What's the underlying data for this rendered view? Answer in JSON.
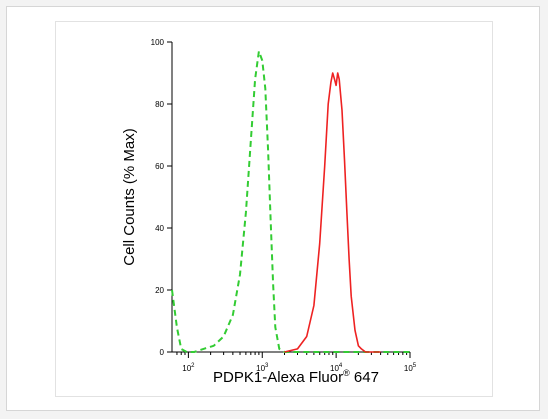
{
  "chart_data": {
    "type": "line",
    "title": "",
    "xlabel": "PDPK1-Alexa Fluor",
    "xlabel_sup": "®",
    "xlabel_tail": " 647",
    "ylabel": "Cell Counts (% Max)",
    "xscale": "log",
    "xlim": [
      60,
      100000
    ],
    "ylim": [
      0,
      100
    ],
    "x_ticks": [
      {
        "base": "10",
        "exp": "2",
        "value": 100
      },
      {
        "base": "10",
        "exp": "3",
        "value": 1000
      },
      {
        "base": "10",
        "exp": "4",
        "value": 10000
      },
      {
        "base": "10",
        "exp": "5",
        "value": 100000
      }
    ],
    "y_ticks": [
      0,
      20,
      40,
      60,
      80,
      100
    ],
    "grid": false,
    "legend": "none",
    "series": [
      {
        "color": "#33cc33",
        "style": "dashed",
        "x": [
          60,
          70,
          80,
          95,
          120,
          160,
          220,
          300,
          400,
          500,
          600,
          700,
          800,
          900,
          1000,
          1100,
          1200,
          1300,
          1400,
          1500,
          1700,
          2000,
          3000,
          10000,
          100000
        ],
        "y": [
          20,
          8,
          1,
          0,
          0,
          1,
          2,
          5,
          12,
          25,
          45,
          68,
          88,
          97,
          94,
          85,
          65,
          42,
          22,
          8,
          1,
          0,
          0,
          0,
          0
        ]
      },
      {
        "color": "#ee2222",
        "style": "solid",
        "x": [
          2000,
          3000,
          4000,
          5000,
          6000,
          7000,
          7800,
          8500,
          9000,
          9500,
          10000,
          10500,
          11000,
          12000,
          13000,
          14000,
          15000,
          16000,
          18000,
          20000,
          22000,
          25000,
          30000,
          40000
        ],
        "y": [
          0,
          1,
          5,
          15,
          35,
          60,
          80,
          87,
          90,
          88,
          86,
          90,
          88,
          78,
          62,
          45,
          30,
          18,
          7,
          2,
          1,
          0,
          0,
          0
        ]
      }
    ]
  }
}
